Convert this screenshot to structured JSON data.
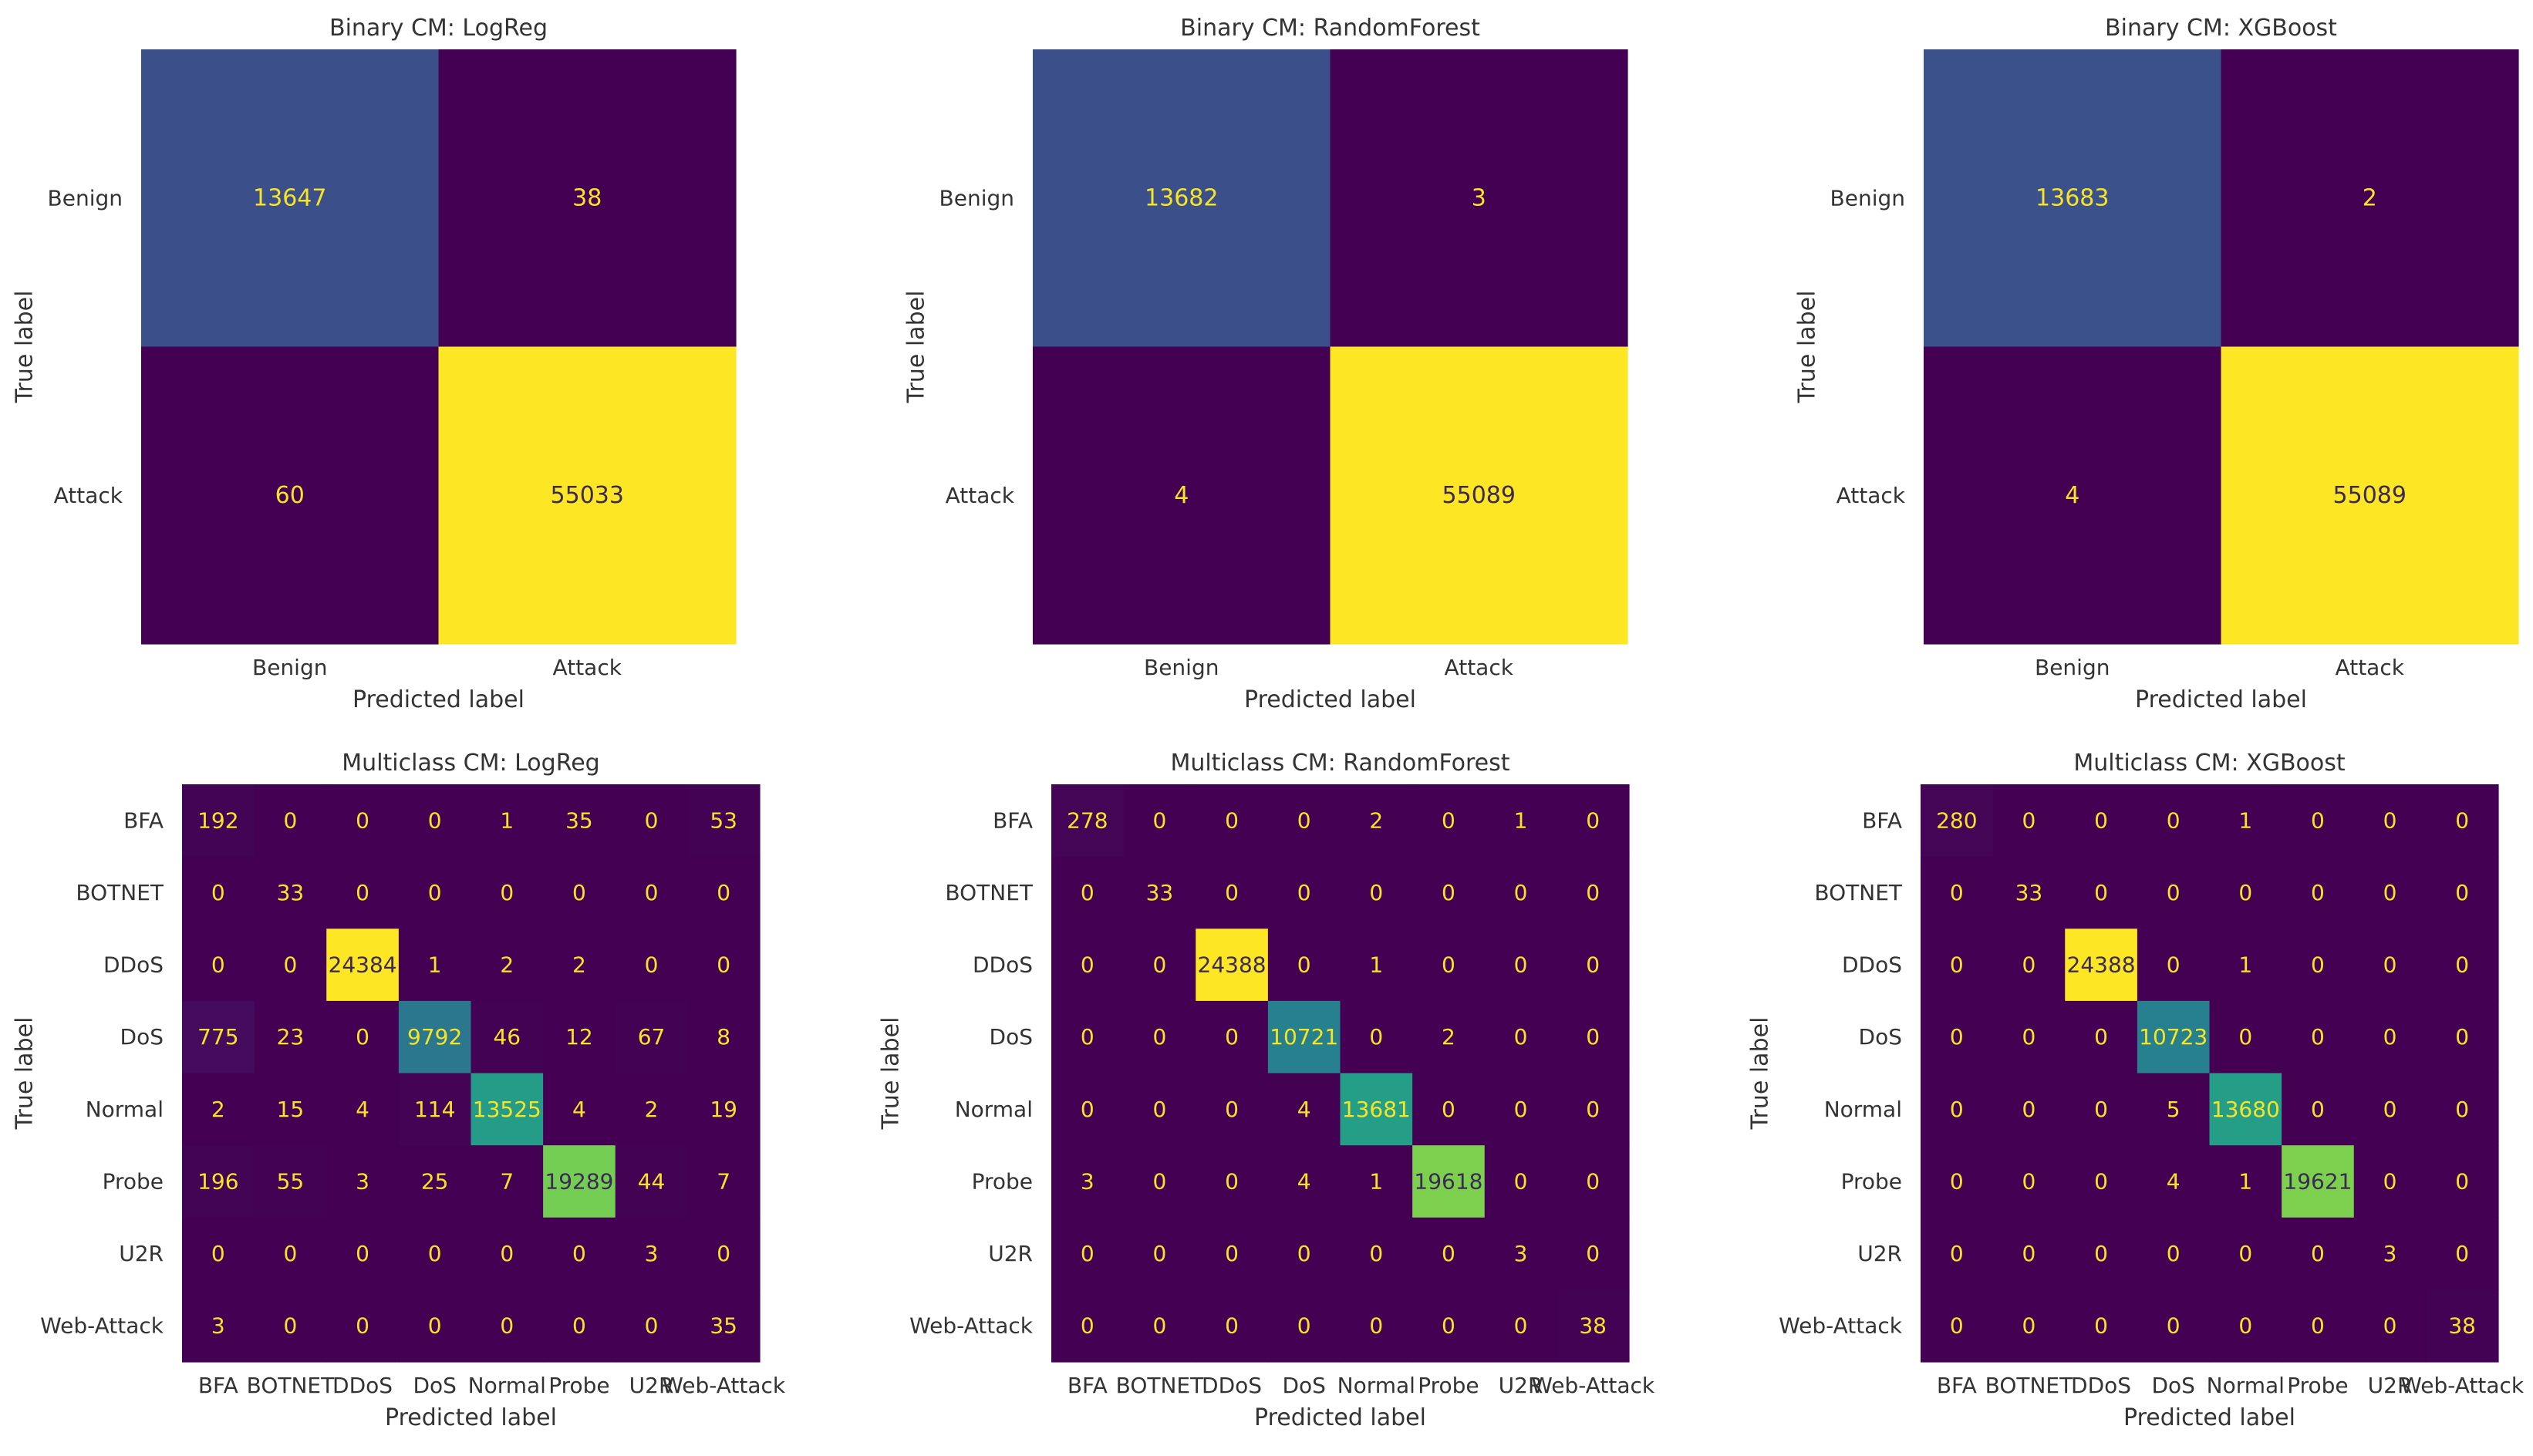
{
  "figure": {
    "background": "#ffffff",
    "text_color": "#333333"
  },
  "colormap": "viridis",
  "chart_data": [
    {
      "type": "heatmap",
      "title": "Binary CM: LogReg",
      "xlabel": "Predicted label",
      "ylabel": "True label",
      "labels": [
        "Benign",
        "Attack"
      ],
      "matrix": [
        [
          13647,
          38
        ],
        [
          60,
          55033
        ]
      ]
    },
    {
      "type": "heatmap",
      "title": "Binary CM: RandomForest",
      "xlabel": "Predicted label",
      "ylabel": "True label",
      "labels": [
        "Benign",
        "Attack"
      ],
      "matrix": [
        [
          13682,
          3
        ],
        [
          4,
          55089
        ]
      ]
    },
    {
      "type": "heatmap",
      "title": "Binary CM: XGBoost",
      "xlabel": "Predicted label",
      "ylabel": "True label",
      "labels": [
        "Benign",
        "Attack"
      ],
      "matrix": [
        [
          13683,
          2
        ],
        [
          4,
          55089
        ]
      ]
    },
    {
      "type": "heatmap",
      "title": "Multiclass CM: LogReg",
      "xlabel": "Predicted label",
      "ylabel": "True label",
      "labels": [
        "BFA",
        "BOTNET",
        "DDoS",
        "DoS",
        "Normal",
        "Probe",
        "U2R",
        "Web-Attack"
      ],
      "matrix": [
        [
          192,
          0,
          0,
          0,
          1,
          35,
          0,
          53
        ],
        [
          0,
          33,
          0,
          0,
          0,
          0,
          0,
          0
        ],
        [
          0,
          0,
          24384,
          1,
          2,
          2,
          0,
          0
        ],
        [
          775,
          23,
          0,
          9792,
          46,
          12,
          67,
          8
        ],
        [
          2,
          15,
          4,
          114,
          13525,
          4,
          2,
          19
        ],
        [
          196,
          55,
          3,
          25,
          7,
          19289,
          44,
          7
        ],
        [
          0,
          0,
          0,
          0,
          0,
          0,
          3,
          0
        ],
        [
          3,
          0,
          0,
          0,
          0,
          0,
          0,
          35
        ]
      ]
    },
    {
      "type": "heatmap",
      "title": "Multiclass CM: RandomForest",
      "xlabel": "Predicted label",
      "ylabel": "True label",
      "labels": [
        "BFA",
        "BOTNET",
        "DDoS",
        "DoS",
        "Normal",
        "Probe",
        "U2R",
        "Web-Attack"
      ],
      "matrix": [
        [
          278,
          0,
          0,
          0,
          2,
          0,
          1,
          0
        ],
        [
          0,
          33,
          0,
          0,
          0,
          0,
          0,
          0
        ],
        [
          0,
          0,
          24388,
          0,
          1,
          0,
          0,
          0
        ],
        [
          0,
          0,
          0,
          10721,
          0,
          2,
          0,
          0
        ],
        [
          0,
          0,
          0,
          4,
          13681,
          0,
          0,
          0
        ],
        [
          3,
          0,
          0,
          4,
          1,
          19618,
          0,
          0
        ],
        [
          0,
          0,
          0,
          0,
          0,
          0,
          3,
          0
        ],
        [
          0,
          0,
          0,
          0,
          0,
          0,
          0,
          38
        ]
      ]
    },
    {
      "type": "heatmap",
      "title": "Multiclass CM: XGBoost",
      "xlabel": "Predicted label",
      "ylabel": "True label",
      "labels": [
        "BFA",
        "BOTNET",
        "DDoS",
        "DoS",
        "Normal",
        "Probe",
        "U2R",
        "Web-Attack"
      ],
      "matrix": [
        [
          280,
          0,
          0,
          0,
          1,
          0,
          0,
          0
        ],
        [
          0,
          33,
          0,
          0,
          0,
          0,
          0,
          0
        ],
        [
          0,
          0,
          24388,
          0,
          1,
          0,
          0,
          0
        ],
        [
          0,
          0,
          0,
          10723,
          0,
          0,
          0,
          0
        ],
        [
          0,
          0,
          0,
          5,
          13680,
          0,
          0,
          0
        ],
        [
          0,
          0,
          0,
          4,
          1,
          19621,
          0,
          0
        ],
        [
          0,
          0,
          0,
          0,
          0,
          0,
          3,
          0
        ],
        [
          0,
          0,
          0,
          0,
          0,
          0,
          0,
          38
        ]
      ]
    }
  ]
}
